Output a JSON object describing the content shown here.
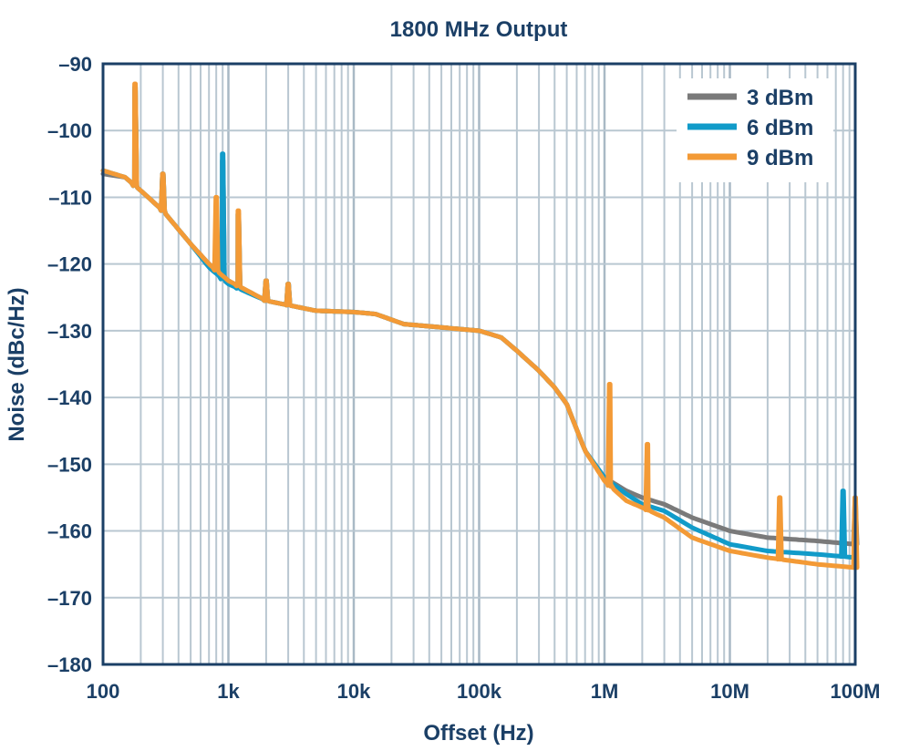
{
  "chart_data": {
    "type": "line",
    "title": "1800 MHz Output",
    "xlabel": "Offset (Hz)",
    "ylabel": "Noise (dBc/Hz)",
    "xscale": "log",
    "xlim": [
      100,
      100000000
    ],
    "ylim": [
      -180,
      -90
    ],
    "x_ticks": [
      100,
      1000,
      10000,
      100000,
      1000000,
      10000000,
      100000000
    ],
    "x_tick_labels": [
      "100",
      "1k",
      "10k",
      "100k",
      "1M",
      "10M",
      "100M"
    ],
    "y_ticks": [
      -90,
      -100,
      -110,
      -120,
      -130,
      -140,
      -150,
      -160,
      -170,
      -180
    ],
    "y_tick_labels": [
      "–90",
      "–100",
      "–110",
      "–120",
      "–130",
      "–140",
      "–150",
      "–160",
      "–170",
      "–180"
    ],
    "grid": true,
    "legend_position": "top-right",
    "series": [
      {
        "name": "3 dBm",
        "color": "#7a7a7a",
        "points": [
          [
            100,
            -106.5
          ],
          [
            150,
            -107
          ],
          [
            200,
            -109
          ],
          [
            300,
            -112
          ],
          [
            500,
            -117
          ],
          [
            700,
            -120
          ],
          [
            1000,
            -122.5
          ],
          [
            2000,
            -125.5
          ],
          [
            5000,
            -127
          ],
          [
            10000,
            -127.2
          ],
          [
            15000,
            -127.5
          ],
          [
            25000,
            -129
          ],
          [
            50000,
            -129.5
          ],
          [
            100000,
            -130
          ],
          [
            150000,
            -131
          ],
          [
            200000,
            -133
          ],
          [
            300000,
            -136
          ],
          [
            400000,
            -138.5
          ],
          [
            500000,
            -141
          ],
          [
            700000,
            -148
          ],
          [
            1000000,
            -152
          ],
          [
            1500000,
            -154
          ],
          [
            2000000,
            -155
          ],
          [
            3000000,
            -156
          ],
          [
            5000000,
            -158
          ],
          [
            10000000,
            -160
          ],
          [
            20000000,
            -161
          ],
          [
            50000000,
            -161.5
          ],
          [
            100000000,
            -162
          ]
        ],
        "spikes": [
          [
            180,
            -94
          ],
          [
            300,
            -106.5
          ],
          [
            900,
            -104.5
          ],
          [
            1200,
            -112.5
          ],
          [
            2000,
            -122.5
          ],
          [
            3000,
            -123
          ],
          [
            100000000,
            -156
          ]
        ]
      },
      {
        "name": "6 dBm",
        "color": "#119bc9",
        "points": [
          [
            100,
            -106
          ],
          [
            150,
            -107
          ],
          [
            200,
            -109
          ],
          [
            300,
            -112
          ],
          [
            500,
            -117
          ],
          [
            700,
            -120.5
          ],
          [
            1000,
            -123
          ],
          [
            2000,
            -125.5
          ],
          [
            5000,
            -127
          ],
          [
            10000,
            -127.2
          ],
          [
            15000,
            -127.5
          ],
          [
            25000,
            -129
          ],
          [
            50000,
            -129.5
          ],
          [
            100000,
            -130
          ],
          [
            150000,
            -131
          ],
          [
            200000,
            -133
          ],
          [
            300000,
            -136
          ],
          [
            400000,
            -138.5
          ],
          [
            500000,
            -141
          ],
          [
            700000,
            -148
          ],
          [
            1000000,
            -152
          ],
          [
            1500000,
            -154.5
          ],
          [
            2000000,
            -156
          ],
          [
            3000000,
            -157
          ],
          [
            5000000,
            -159.5
          ],
          [
            10000000,
            -162
          ],
          [
            20000000,
            -163
          ],
          [
            50000000,
            -163.5
          ],
          [
            100000000,
            -164
          ]
        ],
        "spikes": [
          [
            180,
            -93.5
          ],
          [
            300,
            -106.5
          ],
          [
            900,
            -103.5
          ],
          [
            1200,
            -112.5
          ],
          [
            2000,
            -122.5
          ],
          [
            3000,
            -123
          ],
          [
            80000000,
            -154
          ]
        ]
      },
      {
        "name": "9 dBm",
        "color": "#f39a36",
        "points": [
          [
            100,
            -106
          ],
          [
            150,
            -107
          ],
          [
            200,
            -109
          ],
          [
            300,
            -112
          ],
          [
            500,
            -117
          ],
          [
            700,
            -120
          ],
          [
            1000,
            -122.5
          ],
          [
            2000,
            -125.5
          ],
          [
            5000,
            -127
          ],
          [
            10000,
            -127.2
          ],
          [
            15000,
            -127.5
          ],
          [
            25000,
            -129
          ],
          [
            50000,
            -129.5
          ],
          [
            100000,
            -130
          ],
          [
            150000,
            -131
          ],
          [
            200000,
            -133
          ],
          [
            300000,
            -136
          ],
          [
            400000,
            -138.5
          ],
          [
            500000,
            -141
          ],
          [
            700000,
            -148
          ],
          [
            1000000,
            -152.5
          ],
          [
            1500000,
            -155.5
          ],
          [
            2000000,
            -156.5
          ],
          [
            3000000,
            -158
          ],
          [
            5000000,
            -161
          ],
          [
            10000000,
            -163
          ],
          [
            20000000,
            -164
          ],
          [
            50000000,
            -165
          ],
          [
            100000000,
            -165.5
          ]
        ],
        "spikes": [
          [
            180,
            -93
          ],
          [
            300,
            -106.5
          ],
          [
            800,
            -110
          ],
          [
            1200,
            -112
          ],
          [
            2000,
            -122.5
          ],
          [
            3000,
            -123
          ],
          [
            1100000,
            -138
          ],
          [
            2200000,
            -147
          ],
          [
            25000000,
            -155
          ],
          [
            100000000,
            -155
          ]
        ]
      }
    ]
  }
}
